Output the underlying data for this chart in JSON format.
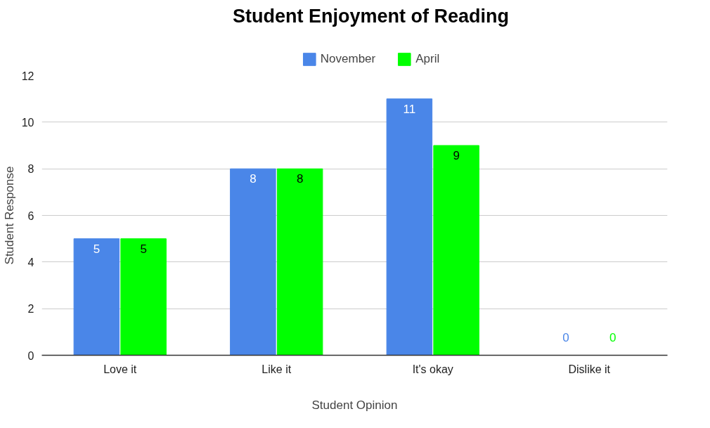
{
  "chart_data": {
    "type": "bar",
    "title": "Student Enjoyment of Reading",
    "xlabel": "Student Opinion",
    "ylabel": "Student Response",
    "categories": [
      "Love it",
      "Like it",
      "It's okay",
      "Dislike it"
    ],
    "series": [
      {
        "name": "November",
        "color": "#4a86e8",
        "values": [
          5,
          8,
          11,
          0
        ]
      },
      {
        "name": "April",
        "color": "#00ff00",
        "values": [
          5,
          8,
          9,
          0
        ]
      }
    ],
    "ylim": [
      0,
      12
    ],
    "yticks": [
      0,
      2,
      4,
      6,
      8,
      10,
      12
    ],
    "grid": "y",
    "legend": "top",
    "data_labels": true
  }
}
